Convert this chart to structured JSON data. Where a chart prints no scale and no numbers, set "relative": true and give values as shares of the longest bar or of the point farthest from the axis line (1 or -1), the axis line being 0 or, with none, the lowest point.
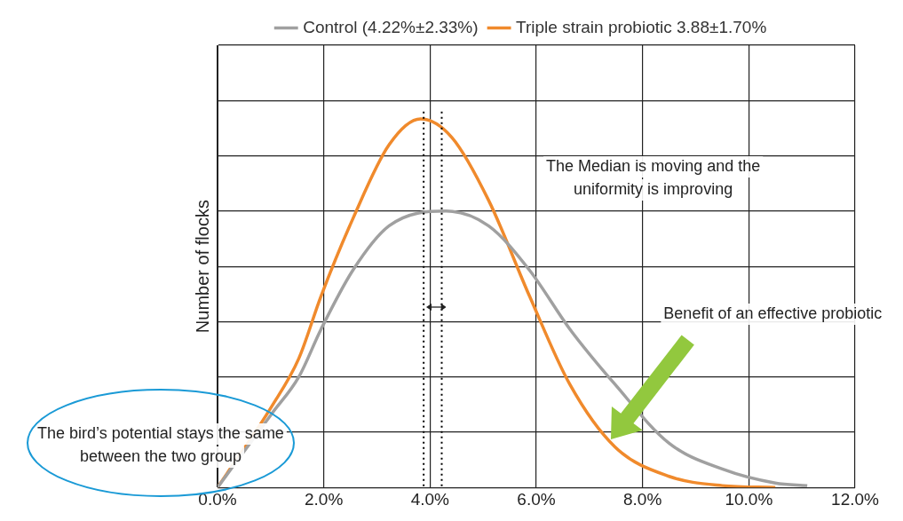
{
  "chart_data": {
    "type": "line",
    "relative": true,
    "ylabel": "Number of flocks",
    "xlim": [
      0,
      12
    ],
    "xticks": [
      {
        "value": 0,
        "label": "0.0%"
      },
      {
        "value": 2,
        "label": "2.0%"
      },
      {
        "value": 4,
        "label": "4.0%"
      },
      {
        "value": 6,
        "label": "6.0%"
      },
      {
        "value": 8,
        "label": "8.0%"
      },
      {
        "value": 10,
        "label": "10.0%"
      },
      {
        "value": 12,
        "label": "12.0%"
      }
    ],
    "grid": true,
    "legend": "top",
    "marker": "none",
    "line_style": "solid",
    "series": [
      {
        "name": "Control (4.22%±2.33%)",
        "color": "#a0a0a0",
        "x": [
          0,
          1.02,
          1.53,
          1.95,
          2.55,
          3.23,
          4.3,
          5.1,
          5.87,
          6.63,
          7.48,
          8.5,
          9.5,
          10.5,
          11.1
        ],
        "values": [
          0,
          0.2,
          0.3,
          0.43,
          0.59,
          0.71,
          0.75,
          0.71,
          0.59,
          0.43,
          0.28,
          0.12,
          0.05,
          0.012,
          0.005
        ]
      },
      {
        "name": "Triple strain probiotic 3.88±1.70%",
        "color": "#f08a2c",
        "x": [
          0,
          1.02,
          1.53,
          1.95,
          2.55,
          3.23,
          3.82,
          4.41,
          5.1,
          5.87,
          6.63,
          7.48,
          8.5,
          9.5,
          10.5
        ],
        "values": [
          0,
          0.22,
          0.35,
          0.52,
          0.73,
          0.93,
          1,
          0.95,
          0.78,
          0.52,
          0.28,
          0.11,
          0.03,
          0.005,
          0
        ]
      }
    ],
    "ref_lines": [
      {
        "axis": "x",
        "value": 3.88,
        "color": "#000000",
        "line_style": "dotted"
      },
      {
        "axis": "x",
        "value": 4.22,
        "color": "#000000",
        "line_style": "dotted"
      }
    ],
    "annotations": [
      "The Median is moving and the uniformity is improving",
      "Benefit of an effective probiotic",
      "The bird’s potential stays the same between the two group"
    ]
  }
}
